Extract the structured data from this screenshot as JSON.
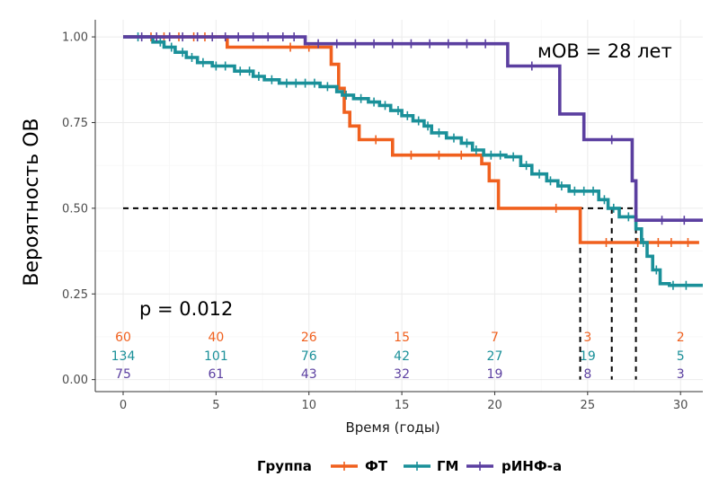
{
  "chart_data": {
    "type": "line",
    "subtype": "kaplan-meier",
    "xlabel": "Время (годы)",
    "ylabel": "Вероятность ОВ",
    "xlim": [
      -1.5,
      31.2
    ],
    "ylim": [
      -0.035,
      1.05
    ],
    "x_ticks": [
      0,
      5,
      10,
      15,
      20,
      25,
      30
    ],
    "y_ticks": [
      0.0,
      0.25,
      0.5,
      0.75,
      1.0
    ],
    "y_tick_labels": [
      "0.00",
      "0.25",
      "0.50",
      "0.75",
      "1.00"
    ],
    "grid": true,
    "annotations": {
      "p_value": "p = 0.012",
      "median": "мОВ = 28 лет"
    },
    "median_line_y": 0.5,
    "median_times": [
      24.6,
      26.3,
      27.6
    ],
    "legend": {
      "title": "Группа",
      "position": "bottom"
    },
    "risk_times": [
      0,
      5,
      10,
      15,
      20,
      25,
      30
    ],
    "series": [
      {
        "name": "ФТ",
        "color": "#f0601e",
        "steps": [
          [
            0,
            1.0
          ],
          [
            5.6,
            0.97
          ],
          [
            11.2,
            0.92
          ],
          [
            11.6,
            0.85
          ],
          [
            11.9,
            0.78
          ],
          [
            12.2,
            0.74
          ],
          [
            12.7,
            0.7
          ],
          [
            14.5,
            0.655
          ],
          [
            19.3,
            0.63
          ],
          [
            19.7,
            0.58
          ],
          [
            20.2,
            0.5
          ],
          [
            24.6,
            0.4
          ],
          [
            31.0,
            0.4
          ]
        ],
        "censor_x": [
          1.5,
          2.2,
          3.0,
          3.8,
          4.4,
          9.0,
          10.0,
          13.6,
          15.5,
          17.0,
          18.2,
          23.3,
          26.0,
          27.7,
          28.8,
          29.5,
          30.4
        ],
        "risk": [
          "60",
          "40",
          "26",
          "15",
          "7",
          "3",
          "2"
        ]
      },
      {
        "name": "ГМ",
        "color": "#1a9099",
        "steps": [
          [
            0,
            1.0
          ],
          [
            1.6,
            0.985
          ],
          [
            2.2,
            0.97
          ],
          [
            2.8,
            0.955
          ],
          [
            3.4,
            0.94
          ],
          [
            4.0,
            0.925
          ],
          [
            4.8,
            0.915
          ],
          [
            6.0,
            0.9
          ],
          [
            7.0,
            0.885
          ],
          [
            7.6,
            0.875
          ],
          [
            8.4,
            0.865
          ],
          [
            10.6,
            0.855
          ],
          [
            11.5,
            0.84
          ],
          [
            11.8,
            0.83
          ],
          [
            12.4,
            0.82
          ],
          [
            13.2,
            0.81
          ],
          [
            13.8,
            0.8
          ],
          [
            14.4,
            0.785
          ],
          [
            15.0,
            0.77
          ],
          [
            15.6,
            0.755
          ],
          [
            16.2,
            0.74
          ],
          [
            16.6,
            0.72
          ],
          [
            17.4,
            0.705
          ],
          [
            18.2,
            0.69
          ],
          [
            18.8,
            0.67
          ],
          [
            19.4,
            0.655
          ],
          [
            20.6,
            0.65
          ],
          [
            21.4,
            0.625
          ],
          [
            22.0,
            0.6
          ],
          [
            22.8,
            0.58
          ],
          [
            23.4,
            0.565
          ],
          [
            24.0,
            0.55
          ],
          [
            25.6,
            0.525
          ],
          [
            26.1,
            0.5
          ],
          [
            26.7,
            0.475
          ],
          [
            27.6,
            0.44
          ],
          [
            27.9,
            0.4
          ],
          [
            28.2,
            0.36
          ],
          [
            28.5,
            0.32
          ],
          [
            28.9,
            0.28
          ],
          [
            29.4,
            0.275
          ],
          [
            31.2,
            0.275
          ]
        ],
        "censor_x": [
          0.8,
          2.0,
          2.6,
          3.2,
          3.7,
          4.3,
          5.0,
          5.5,
          6.3,
          6.8,
          7.3,
          8.0,
          8.8,
          9.3,
          9.8,
          10.3,
          11.0,
          12.0,
          12.8,
          13.5,
          14.1,
          14.8,
          15.3,
          15.9,
          16.4,
          17.0,
          17.8,
          18.5,
          19.0,
          19.8,
          20.3,
          21.0,
          21.7,
          22.4,
          23.0,
          23.6,
          24.3,
          24.8,
          25.3,
          25.9,
          26.4,
          27.2,
          28.0,
          28.7,
          29.6,
          30.3
        ],
        "risk": [
          "134",
          "101",
          "76",
          "42",
          "27",
          "19",
          "5"
        ]
      },
      {
        "name": "рИНФ-a",
        "color": "#5b3fa0",
        "steps": [
          [
            0,
            1.0
          ],
          [
            9.8,
            0.98
          ],
          [
            20.7,
            0.915
          ],
          [
            23.5,
            0.775
          ],
          [
            24.8,
            0.7
          ],
          [
            27.4,
            0.58
          ],
          [
            27.6,
            0.465
          ],
          [
            31.2,
            0.465
          ]
        ],
        "censor_x": [
          1.0,
          1.8,
          2.5,
          3.2,
          4.0,
          4.8,
          5.5,
          6.2,
          7.0,
          7.8,
          8.6,
          9.2,
          10.5,
          11.5,
          12.5,
          13.5,
          14.5,
          15.5,
          16.5,
          17.5,
          18.5,
          19.5,
          22.0,
          26.3,
          29.0,
          30.2
        ],
        "risk": [
          "75",
          "61",
          "43",
          "32",
          "19",
          "8",
          "3"
        ]
      }
    ]
  }
}
